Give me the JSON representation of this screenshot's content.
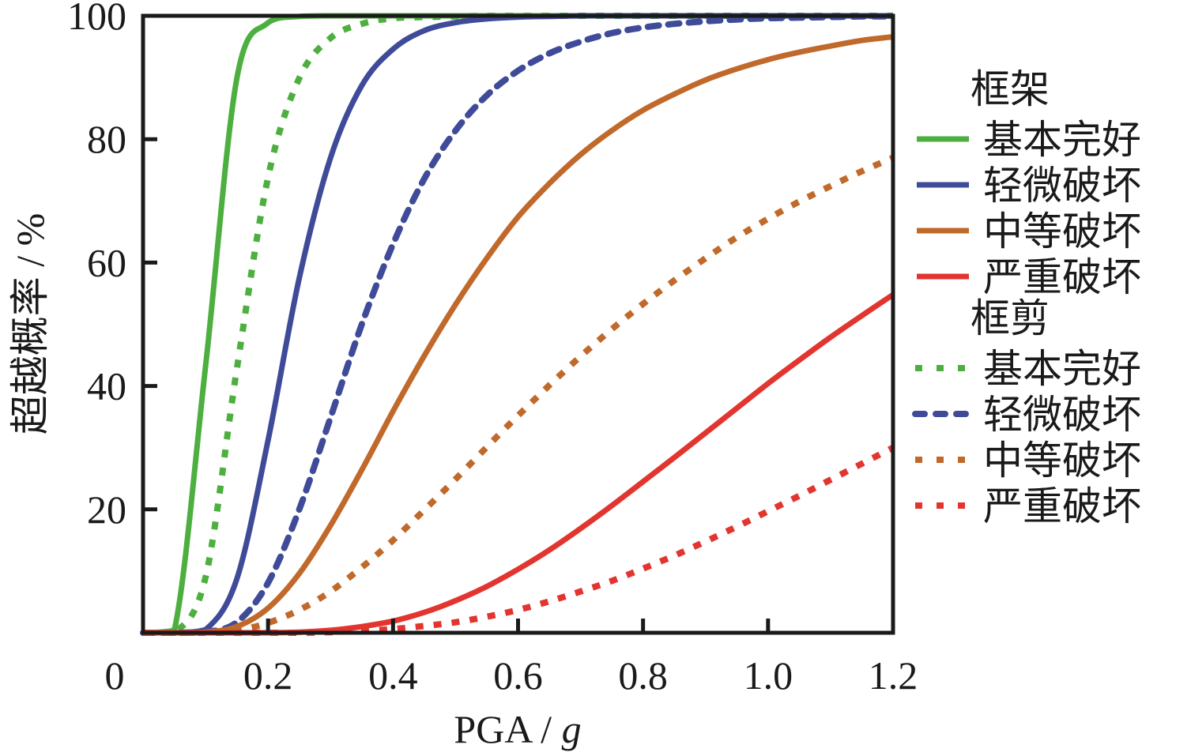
{
  "chart_data": {
    "type": "line",
    "title": "",
    "xlabel": "PGA / g",
    "xlabel_main": "PGA / ",
    "xlabel_unit": "g",
    "ylabel": "超越概率 / %",
    "xlim": [
      0,
      1.2
    ],
    "ylim": [
      0,
      100
    ],
    "grid": false,
    "legend_position": "right",
    "x_ticks": [
      0,
      0.2,
      0.4,
      0.6,
      0.8,
      1.0,
      1.2
    ],
    "x_tick_labels": [
      "0",
      "0.2",
      "0.4",
      "0.6",
      "0.8",
      "1.0",
      "1.2"
    ],
    "y_ticks": [
      20,
      40,
      60,
      80,
      100
    ],
    "y_tick_labels": [
      "20",
      "40",
      "60",
      "80",
      "100"
    ],
    "x": [
      0,
      0.05,
      0.1,
      0.15,
      0.2,
      0.25,
      0.3,
      0.35,
      0.4,
      0.45,
      0.5,
      0.55,
      0.6,
      0.65,
      0.7,
      0.75,
      0.8,
      0.85,
      0.9,
      0.95,
      1.0,
      1.05,
      1.1,
      1.15,
      1.2
    ],
    "legend_groups": [
      {
        "title": "框架",
        "style": "solid"
      },
      {
        "title": "框剪",
        "style": "dashed"
      }
    ],
    "series": [
      {
        "group": "框架",
        "name": "基本完好",
        "style": "solid",
        "color": "#4daf3f",
        "values": [
          0,
          0.4,
          43.2,
          89.8,
          98.9,
          99.9,
          100,
          100,
          100,
          100,
          100,
          100,
          100,
          100,
          100,
          100,
          100,
          100,
          100,
          100,
          100,
          100,
          100,
          100,
          100
        ]
      },
      {
        "group": "框架",
        "name": "轻微破坏",
        "style": "solid",
        "color": "#3f4b99",
        "values": [
          0,
          0,
          0.5,
          8.7,
          31.2,
          57.5,
          77.0,
          88.7,
          94.6,
          97.6,
          98.9,
          99.5,
          99.8,
          99.9,
          100,
          100,
          100,
          100,
          100,
          100,
          100,
          100,
          100,
          100,
          100
        ]
      },
      {
        "group": "框架",
        "name": "中等破坏",
        "style": "solid",
        "color": "#c0692b",
        "values": [
          0,
          0,
          0.1,
          1.0,
          4.0,
          9.6,
          17.4,
          26.4,
          35.9,
          44.9,
          53.2,
          60.7,
          67.4,
          72.8,
          77.5,
          81.4,
          84.7,
          87.3,
          89.6,
          91.4,
          92.9,
          94.1,
          95.1,
          96.0,
          96.6
        ]
      },
      {
        "group": "框架",
        "name": "严重破坏",
        "style": "solid",
        "color": "#e2352f",
        "values": [
          0,
          0,
          0,
          0,
          0,
          0.1,
          0.4,
          1.0,
          1.9,
          3.3,
          5.2,
          7.5,
          10.3,
          13.4,
          16.9,
          20.6,
          24.5,
          28.4,
          32.4,
          36.4,
          40.4,
          44.2,
          47.9,
          51.4,
          54.8
        ]
      },
      {
        "group": "框剪",
        "name": "基本完好",
        "style": "dotted",
        "color": "#4daf3f",
        "values": [
          0,
          0,
          9.0,
          42.7,
          73.8,
          89.9,
          96.4,
          98.7,
          99.6,
          99.8,
          99.9,
          100,
          100,
          100,
          100,
          100,
          100,
          100,
          100,
          100,
          100,
          100,
          100,
          100,
          100
        ]
      },
      {
        "group": "框剪",
        "name": "轻微破坏",
        "style": "dashed",
        "color": "#3f4b99",
        "values": [
          0,
          0,
          0.1,
          1.7,
          8.1,
          20.0,
          34.9,
          50.0,
          63.0,
          73.6,
          81.4,
          87.1,
          91.1,
          93.9,
          95.8,
          97.2,
          98.1,
          98.7,
          99.1,
          99.4,
          99.6,
          99.7,
          99.8,
          99.9,
          99.9
        ]
      },
      {
        "group": "框剪",
        "name": "中等破坏",
        "style": "dotted",
        "color": "#c0692b",
        "values": [
          0,
          0,
          0.1,
          0.4,
          1.6,
          3.7,
          6.7,
          10.6,
          15.0,
          19.9,
          24.9,
          30.1,
          35.2,
          40.1,
          44.8,
          49.2,
          53.3,
          57.1,
          60.7,
          64.1,
          67.1,
          69.9,
          72.4,
          74.8,
          77.0
        ]
      },
      {
        "group": "框剪",
        "name": "严重破坏",
        "style": "dotted",
        "color": "#e2352f",
        "values": [
          0,
          0,
          0,
          0,
          0,
          0,
          0.1,
          0.3,
          0.6,
          1.1,
          1.7,
          2.6,
          3.7,
          5.1,
          6.7,
          8.4,
          10.4,
          12.5,
          14.8,
          17.2,
          19.7,
          22.2,
          24.8,
          27.4,
          30.0
        ]
      }
    ]
  }
}
